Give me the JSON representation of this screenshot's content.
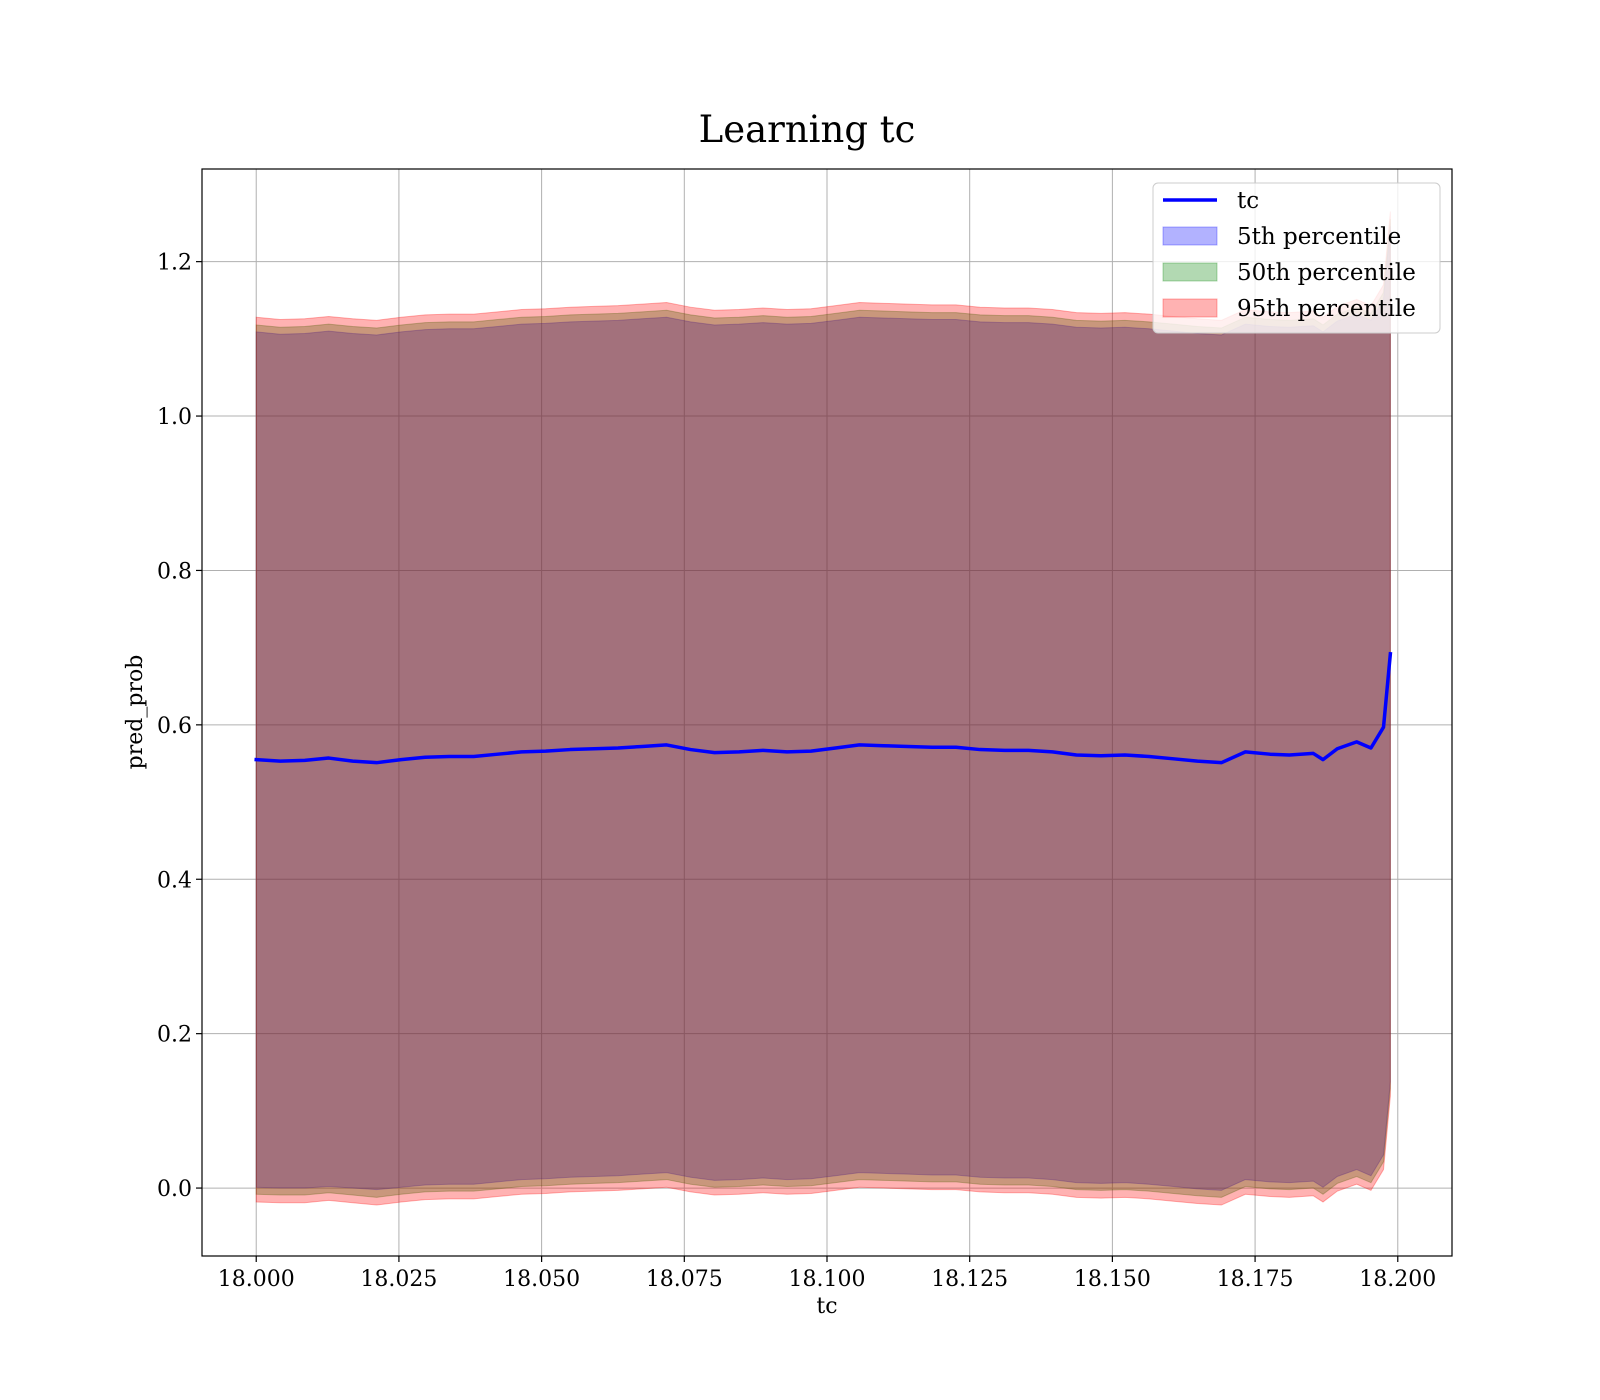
{
  "chart_data": {
    "type": "area",
    "title": "Learning tc",
    "xlabel": "tc",
    "ylabel": "pred_prob",
    "xlim": [
      17.9905,
      18.2095
    ],
    "ylim": [
      -0.088,
      1.32
    ],
    "grid": true,
    "legend_position": "top-right",
    "x_ticks": [
      "18.000",
      "18.025",
      "18.050",
      "18.075",
      "18.100",
      "18.125",
      "18.150",
      "18.175",
      "18.200"
    ],
    "y_ticks": [
      "0.0",
      "0.2",
      "0.4",
      "0.6",
      "0.8",
      "1.0",
      "1.2"
    ],
    "line_series": {
      "name": "tc",
      "color": "#0000ff",
      "x": [
        18.0,
        18.0042,
        18.0085,
        18.0127,
        18.0169,
        18.0211,
        18.0254,
        18.0296,
        18.0338,
        18.0381,
        18.0423,
        18.0465,
        18.0507,
        18.055,
        18.0592,
        18.0634,
        18.0676,
        18.0719,
        18.0761,
        18.0803,
        18.0846,
        18.0888,
        18.093,
        18.0972,
        18.1015,
        18.1057,
        18.1099,
        18.1142,
        18.1184,
        18.1226,
        18.1268,
        18.1311,
        18.1353,
        18.1395,
        18.1437,
        18.148,
        18.1522,
        18.1564,
        18.1607,
        18.1649,
        18.1691,
        18.1733,
        18.1776,
        18.181,
        18.1852,
        18.1869,
        18.1894,
        18.1928,
        18.1953,
        18.1975,
        18.1987
      ],
      "y": [
        0.555,
        0.553,
        0.554,
        0.557,
        0.553,
        0.551,
        0.555,
        0.558,
        0.559,
        0.559,
        0.562,
        0.565,
        0.566,
        0.568,
        0.569,
        0.57,
        0.572,
        0.574,
        0.568,
        0.564,
        0.565,
        0.567,
        0.565,
        0.566,
        0.57,
        0.574,
        0.573,
        0.572,
        0.571,
        0.571,
        0.568,
        0.567,
        0.567,
        0.565,
        0.561,
        0.56,
        0.561,
        0.559,
        0.556,
        0.553,
        0.551,
        0.565,
        0.562,
        0.561,
        0.563,
        0.555,
        0.569,
        0.578,
        0.57,
        0.597,
        0.692
      ]
    },
    "bands": [
      {
        "name": "5th percentile",
        "color": "#0000ff",
        "opacity": 0.3,
        "x": [
          18.0,
          18.0042,
          18.0085,
          18.0127,
          18.0169,
          18.0211,
          18.0254,
          18.0296,
          18.0338,
          18.0381,
          18.0423,
          18.0465,
          18.0507,
          18.055,
          18.0592,
          18.0634,
          18.0676,
          18.0719,
          18.0761,
          18.0803,
          18.0846,
          18.0888,
          18.093,
          18.0972,
          18.1015,
          18.1057,
          18.1099,
          18.1142,
          18.1184,
          18.1226,
          18.1268,
          18.1311,
          18.1353,
          18.1395,
          18.1437,
          18.148,
          18.1522,
          18.1564,
          18.1607,
          18.1649,
          18.1691,
          18.1733,
          18.1776,
          18.181,
          18.1852,
          18.1869,
          18.1894,
          18.1928,
          18.1953,
          18.1975,
          18.1987
        ],
        "lower": [
          0.001,
          0.0,
          0.0,
          0.002,
          0.0,
          -0.002,
          0.001,
          0.004,
          0.005,
          0.005,
          0.008,
          0.011,
          0.012,
          0.014,
          0.015,
          0.016,
          0.018,
          0.02,
          0.014,
          0.01,
          0.011,
          0.013,
          0.011,
          0.012,
          0.016,
          0.02,
          0.019,
          0.018,
          0.017,
          0.017,
          0.014,
          0.013,
          0.013,
          0.011,
          0.007,
          0.006,
          0.007,
          0.005,
          0.002,
          -0.001,
          -0.003,
          0.011,
          0.008,
          0.007,
          0.009,
          0.001,
          0.015,
          0.024,
          0.016,
          0.043,
          0.138
        ],
        "upper": [
          1.109,
          1.106,
          1.107,
          1.11,
          1.107,
          1.105,
          1.109,
          1.112,
          1.113,
          1.113,
          1.116,
          1.119,
          1.12,
          1.122,
          1.123,
          1.124,
          1.126,
          1.128,
          1.122,
          1.118,
          1.119,
          1.121,
          1.119,
          1.12,
          1.124,
          1.128,
          1.127,
          1.126,
          1.125,
          1.125,
          1.122,
          1.121,
          1.121,
          1.119,
          1.115,
          1.114,
          1.115,
          1.113,
          1.11,
          1.107,
          1.105,
          1.119,
          1.116,
          1.115,
          1.117,
          1.109,
          1.123,
          1.132,
          1.124,
          1.151,
          1.246
        ]
      },
      {
        "name": "50th percentile",
        "color": "#008000",
        "opacity": 0.3,
        "x": [
          18.0,
          18.0042,
          18.0085,
          18.0127,
          18.0169,
          18.0211,
          18.0254,
          18.0296,
          18.0338,
          18.0381,
          18.0423,
          18.0465,
          18.0507,
          18.055,
          18.0592,
          18.0634,
          18.0676,
          18.0719,
          18.0761,
          18.0803,
          18.0846,
          18.0888,
          18.093,
          18.0972,
          18.1015,
          18.1057,
          18.1099,
          18.1142,
          18.1184,
          18.1226,
          18.1268,
          18.1311,
          18.1353,
          18.1395,
          18.1437,
          18.148,
          18.1522,
          18.1564,
          18.1607,
          18.1649,
          18.1691,
          18.1733,
          18.1776,
          18.181,
          18.1852,
          18.1869,
          18.1894,
          18.1928,
          18.1953,
          18.1975,
          18.1987
        ],
        "lower": [
          -0.008,
          -0.009,
          -0.009,
          -0.006,
          -0.009,
          -0.012,
          -0.008,
          -0.005,
          -0.004,
          -0.004,
          -0.001,
          0.002,
          0.003,
          0.005,
          0.006,
          0.007,
          0.009,
          0.011,
          0.005,
          0.001,
          0.002,
          0.004,
          0.002,
          0.003,
          0.007,
          0.011,
          0.01,
          0.009,
          0.008,
          0.008,
          0.005,
          0.004,
          0.004,
          0.002,
          -0.002,
          -0.003,
          -0.002,
          -0.004,
          -0.007,
          -0.01,
          -0.012,
          0.002,
          -0.001,
          -0.002,
          0.0,
          -0.008,
          0.006,
          0.015,
          0.007,
          0.034,
          0.129
        ],
        "upper": [
          1.118,
          1.115,
          1.116,
          1.119,
          1.116,
          1.114,
          1.118,
          1.121,
          1.122,
          1.122,
          1.125,
          1.128,
          1.129,
          1.131,
          1.132,
          1.133,
          1.135,
          1.137,
          1.131,
          1.127,
          1.128,
          1.13,
          1.128,
          1.129,
          1.133,
          1.137,
          1.136,
          1.135,
          1.134,
          1.134,
          1.131,
          1.13,
          1.13,
          1.128,
          1.124,
          1.123,
          1.124,
          1.122,
          1.119,
          1.116,
          1.114,
          1.128,
          1.125,
          1.124,
          1.126,
          1.118,
          1.132,
          1.141,
          1.133,
          1.16,
          1.255
        ]
      },
      {
        "name": "95th percentile",
        "color": "#ff0000",
        "opacity": 0.3,
        "x": [
          18.0,
          18.0042,
          18.0085,
          18.0127,
          18.0169,
          18.0211,
          18.0254,
          18.0296,
          18.0338,
          18.0381,
          18.0423,
          18.0465,
          18.0507,
          18.055,
          18.0592,
          18.0634,
          18.0676,
          18.0719,
          18.0761,
          18.0803,
          18.0846,
          18.0888,
          18.093,
          18.0972,
          18.1015,
          18.1057,
          18.1099,
          18.1142,
          18.1184,
          18.1226,
          18.1268,
          18.1311,
          18.1353,
          18.1395,
          18.1437,
          18.148,
          18.1522,
          18.1564,
          18.1607,
          18.1649,
          18.1691,
          18.1733,
          18.1776,
          18.181,
          18.1852,
          18.1869,
          18.1894,
          18.1928,
          18.1953,
          18.1975,
          18.1987
        ],
        "lower": [
          -0.018,
          -0.019,
          -0.019,
          -0.016,
          -0.019,
          -0.022,
          -0.018,
          -0.015,
          -0.014,
          -0.014,
          -0.011,
          -0.008,
          -0.007,
          -0.005,
          -0.004,
          -0.003,
          -0.001,
          0.001,
          -0.005,
          -0.009,
          -0.008,
          -0.006,
          -0.008,
          -0.007,
          -0.003,
          0.001,
          0.0,
          -0.001,
          -0.002,
          -0.002,
          -0.005,
          -0.006,
          -0.006,
          -0.008,
          -0.012,
          -0.013,
          -0.012,
          -0.014,
          -0.017,
          -0.02,
          -0.022,
          -0.008,
          -0.011,
          -0.012,
          -0.01,
          -0.018,
          -0.004,
          0.005,
          -0.003,
          0.024,
          0.119
        ],
        "upper": [
          1.128,
          1.125,
          1.126,
          1.129,
          1.126,
          1.124,
          1.128,
          1.131,
          1.132,
          1.132,
          1.135,
          1.138,
          1.139,
          1.141,
          1.142,
          1.143,
          1.145,
          1.147,
          1.141,
          1.137,
          1.138,
          1.14,
          1.138,
          1.139,
          1.143,
          1.147,
          1.146,
          1.145,
          1.144,
          1.144,
          1.141,
          1.14,
          1.14,
          1.138,
          1.134,
          1.133,
          1.134,
          1.132,
          1.129,
          1.126,
          1.124,
          1.138,
          1.135,
          1.134,
          1.136,
          1.128,
          1.142,
          1.151,
          1.143,
          1.17,
          1.265
        ]
      }
    ]
  }
}
